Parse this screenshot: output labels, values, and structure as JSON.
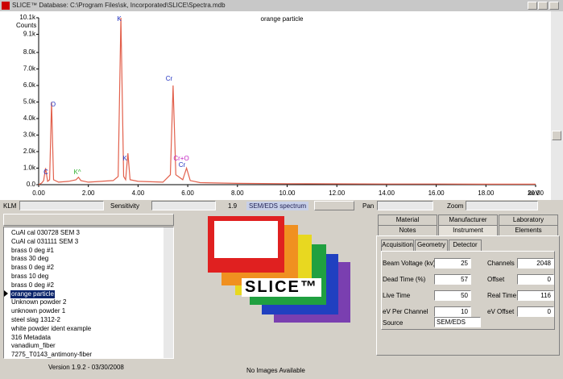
{
  "window": {
    "title": "SLICE™ Database: C:\\Program Files\\sk, Incorporated\\SLICE\\Spectra.mdb"
  },
  "spectrum": {
    "type": "line",
    "title": "orange particle",
    "ylabel": "Counts",
    "xlabel": "keV",
    "color": "#e2604c",
    "x": [
      0,
      0.12,
      0.2,
      0.28,
      0.36,
      0.44,
      0.52,
      0.6,
      0.8,
      1.2,
      1.5,
      1.6,
      1.7,
      2.0,
      3.0,
      3.2,
      3.31,
      3.42,
      3.5,
      3.59,
      3.68,
      4.0,
      5.0,
      5.3,
      5.41,
      5.52,
      5.8,
      5.95,
      6.1,
      6.5,
      8,
      10,
      12,
      14,
      16,
      18,
      20
    ],
    "values": [
      0,
      100,
      250,
      1000,
      200,
      300,
      5000,
      300,
      150,
      200,
      300,
      450,
      250,
      150,
      250,
      500,
      10100,
      500,
      300,
      1900,
      300,
      200,
      150,
      600,
      6000,
      600,
      300,
      1000,
      250,
      120,
      80,
      60,
      50,
      40,
      40,
      30,
      30
    ],
    "xlim": [
      0,
      20
    ],
    "ylim": [
      0,
      10100
    ],
    "xticks": [
      {
        "value": 0,
        "label": "0.00"
      },
      {
        "value": 2,
        "label": "2.00"
      },
      {
        "value": 4,
        "label": "4.00"
      },
      {
        "value": 6,
        "label": "6.00"
      },
      {
        "value": 8,
        "label": "8.00"
      },
      {
        "value": 10,
        "label": "10.00"
      },
      {
        "value": 12,
        "label": "12.00"
      },
      {
        "value": 14,
        "label": "14.00"
      },
      {
        "value": 16,
        "label": "16.00"
      },
      {
        "value": 18,
        "label": "18.00"
      },
      {
        "value": 20,
        "label": "20.00"
      }
    ],
    "yticks": [
      {
        "value": 0,
        "label": "0.0"
      },
      {
        "value": 1000,
        "label": "1.0k"
      },
      {
        "value": 2000,
        "label": "2.0k"
      },
      {
        "value": 3000,
        "label": "3.0k"
      },
      {
        "value": 4000,
        "label": "4.0k"
      },
      {
        "value": 5000,
        "label": "5.0k"
      },
      {
        "value": 6000,
        "label": "6.0k"
      },
      {
        "value": 7000,
        "label": "7.0k"
      },
      {
        "value": 8000,
        "label": "8.0k"
      },
      {
        "value": 9100,
        "label": "9.1k"
      },
      {
        "value": 10100,
        "label": "10.1k"
      }
    ],
    "annotations": [
      "C",
      "O",
      "K^",
      "K",
      "K",
      "Cr",
      "Cr+O",
      "Cr"
    ]
  },
  "toolbar": {
    "klm": "KLM",
    "sensitivity": "Sensitivity",
    "sensitivity_value": "1.9",
    "mode": "SEM/EDS spectrum",
    "pan": "Pan",
    "zoom": "Zoom"
  },
  "list": {
    "items": [
      "CuAl cal 030728 SEM 3",
      "CuAl cal 031111 SEM 3",
      "brass 0 deg #1",
      "brass 30 deg",
      "brass 0 deg #2",
      "brass 10 deg",
      "brass 0 deg #2",
      "orange particle",
      "Unknown powder 2",
      "unknown powder 1",
      "steel slag 1312-2",
      "white powder ident example",
      "316 Metadata",
      "vanadium_fiber",
      "7275_T0143_antimony-fiber"
    ],
    "selected": 7
  },
  "footer": {
    "version": "Version 1.9.2 - 03/30/2008"
  },
  "images": {
    "logo": "SLICE™",
    "status": "No Images Available"
  },
  "properties": {
    "tabs_top": [
      "Material",
      "Manufacturer",
      "Laboratory"
    ],
    "tabs_bottom": [
      "Notes",
      "Instrument",
      "Elements"
    ],
    "subtabs": [
      "Acquisition",
      "Geometry",
      "Detector"
    ],
    "fields_left": [
      {
        "label": "Beam Voltage (kv)",
        "value": "25"
      },
      {
        "label": "Dead Time (%)",
        "value": "57"
      },
      {
        "label": "Live Time",
        "value": "50"
      },
      {
        "label": "eV Per Channel",
        "value": "10"
      }
    ],
    "source_label": "Source",
    "source_value": "SEM/EDS",
    "fields_right": [
      {
        "label": "Channels",
        "value": "2048"
      },
      {
        "label": "Offset",
        "value": "0"
      },
      {
        "label": "Real Time",
        "value": "116"
      },
      {
        "label": "eV Offset",
        "value": "0"
      }
    ]
  }
}
